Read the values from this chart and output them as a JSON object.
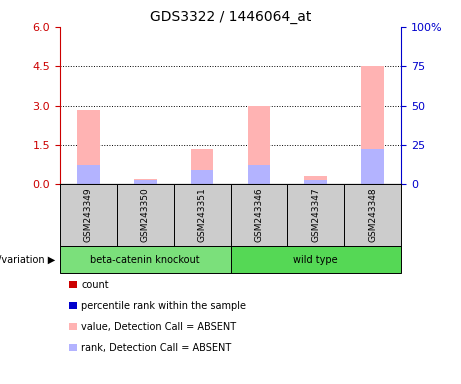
{
  "title": "GDS3322 / 1446064_at",
  "samples": [
    "GSM243349",
    "GSM243350",
    "GSM243351",
    "GSM243346",
    "GSM243347",
    "GSM243348"
  ],
  "pink_bar_heights": [
    2.85,
    0.2,
    1.35,
    3.0,
    0.3,
    4.5
  ],
  "blue_mark_heights": [
    0.75,
    0.18,
    0.55,
    0.75,
    0.18,
    1.35
  ],
  "left_ylim": [
    0,
    6
  ],
  "left_yticks": [
    0,
    1.5,
    3.0,
    4.5,
    6
  ],
  "right_ylim": [
    0,
    100
  ],
  "right_yticks": [
    0,
    25,
    50,
    75,
    100
  ],
  "right_yticklabels": [
    "0",
    "25",
    "50",
    "75",
    "100%"
  ],
  "left_ycolor": "#cc0000",
  "right_ycolor": "#0000cc",
  "dotted_grid_values": [
    1.5,
    3.0,
    4.5
  ],
  "group1_label": "beta-catenin knockout",
  "group2_label": "wild type",
  "group1_color": "#7be07b",
  "group2_color": "#55d855",
  "genotype_label": "genotype/variation",
  "pink_bar_color": "#ffb3b3",
  "blue_bar_color": "#b3b3ff",
  "legend_items": [
    {
      "color": "#cc0000",
      "label": "count",
      "square": true
    },
    {
      "color": "#0000cc",
      "label": "percentile rank within the sample",
      "square": true
    },
    {
      "color": "#ffb3b3",
      "label": "value, Detection Call = ABSENT",
      "square": true
    },
    {
      "color": "#b3b3ff",
      "label": "rank, Detection Call = ABSENT",
      "square": true
    }
  ],
  "plot_bg_color": "#ffffff",
  "sample_bg_color": "#cccccc",
  "title_fontsize": 10,
  "bar_width": 0.4
}
